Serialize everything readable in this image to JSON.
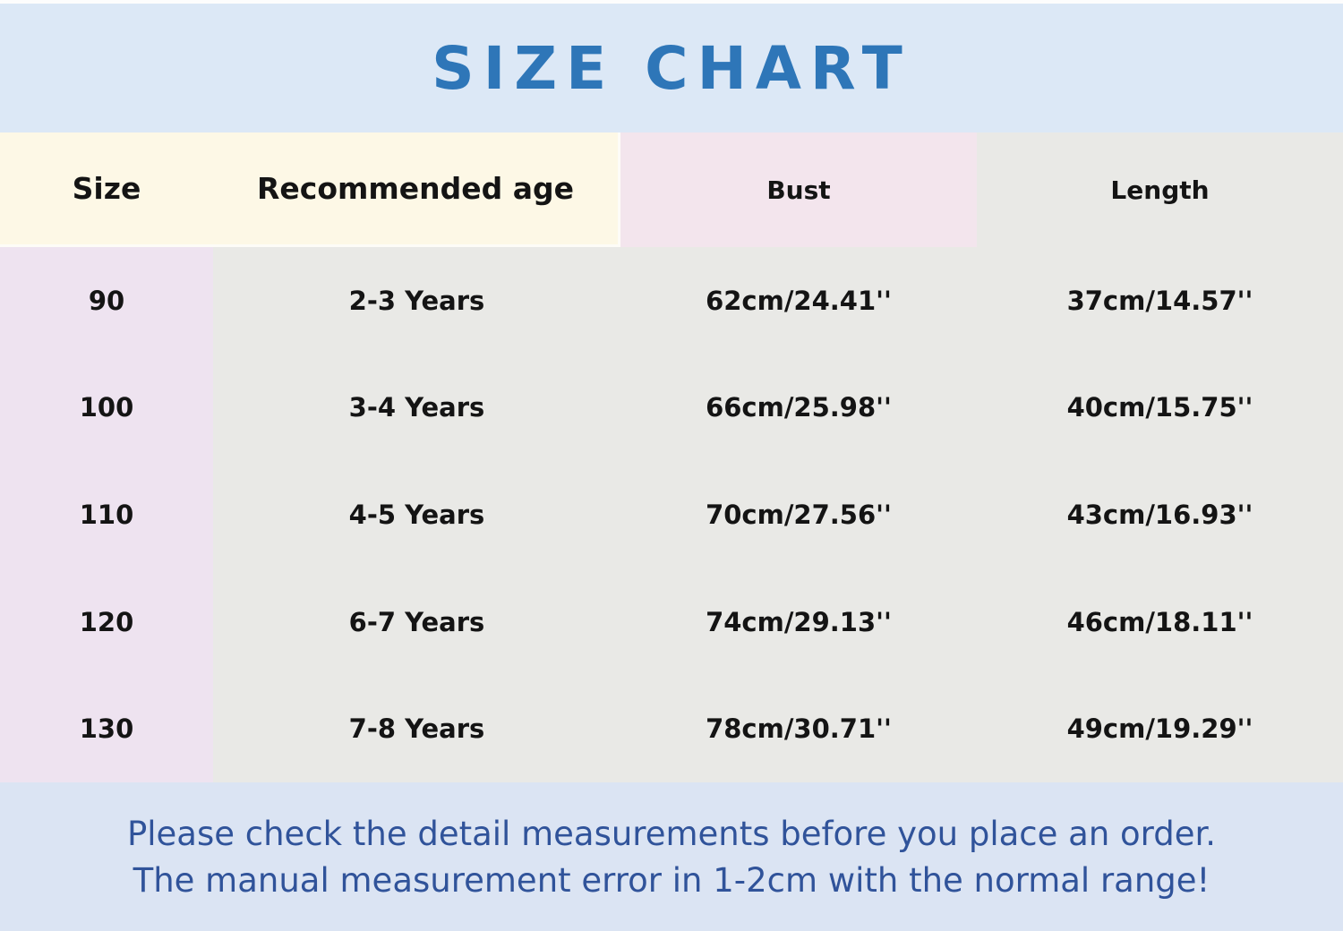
{
  "title": "SIZE CHART",
  "table": {
    "columns": [
      "Size",
      "Recommended age",
      "Bust",
      "Length"
    ],
    "rows": [
      {
        "size": "90",
        "age": "2-3 Years",
        "bust": "62cm/24.41''",
        "length": "37cm/14.57''"
      },
      {
        "size": "100",
        "age": "3-4 Years",
        "bust": "66cm/25.98''",
        "length": "40cm/15.75''"
      },
      {
        "size": "110",
        "age": "4-5 Years",
        "bust": "70cm/27.56''",
        "length": "43cm/16.93''"
      },
      {
        "size": "120",
        "age": "6-7 Years",
        "bust": "74cm/29.13''",
        "length": "46cm/18.11''"
      },
      {
        "size": "130",
        "age": "7-8 Years",
        "bust": "78cm/30.71''",
        "length": "49cm/19.29''"
      }
    ]
  },
  "footer": {
    "line1": "Please check the detail measurements before you place an order.",
    "line2": "The manual measurement error in 1-2cm with the normal range!"
  },
  "colors": {
    "band_blue": "#dce8f6",
    "band_blue2": "#dbe4f3",
    "title_blue": "#2e76b8",
    "footer_blue": "#30539a",
    "cream": "#fdf8e6",
    "header_pink": "#f3e5ed",
    "size_col_pink": "#eee3f0",
    "cell_gray": "#e9e9e6",
    "text_black": "#141414"
  },
  "chart_data": {
    "type": "table",
    "title": "SIZE CHART",
    "columns": [
      "Size",
      "Recommended age",
      "Bust",
      "Length"
    ],
    "rows": [
      [
        "90",
        "2-3 Years",
        "62cm/24.41''",
        "37cm/14.57''"
      ],
      [
        "100",
        "3-4 Years",
        "66cm/25.98''",
        "40cm/15.75''"
      ],
      [
        "110",
        "4-5 Years",
        "70cm/27.56''",
        "43cm/16.93''"
      ],
      [
        "120",
        "6-7 Years",
        "74cm/29.13''",
        "46cm/18.11''"
      ],
      [
        "130",
        "7-8 Years",
        "78cm/30.71''",
        "49cm/19.29''"
      ]
    ],
    "bust_cm": [
      62,
      66,
      70,
      74,
      78
    ],
    "length_cm": [
      37,
      40,
      43,
      46,
      49
    ],
    "notes": [
      "Please check the detail measurements before you place an order.",
      "The manual measurement error in 1-2cm with the normal range!"
    ]
  }
}
